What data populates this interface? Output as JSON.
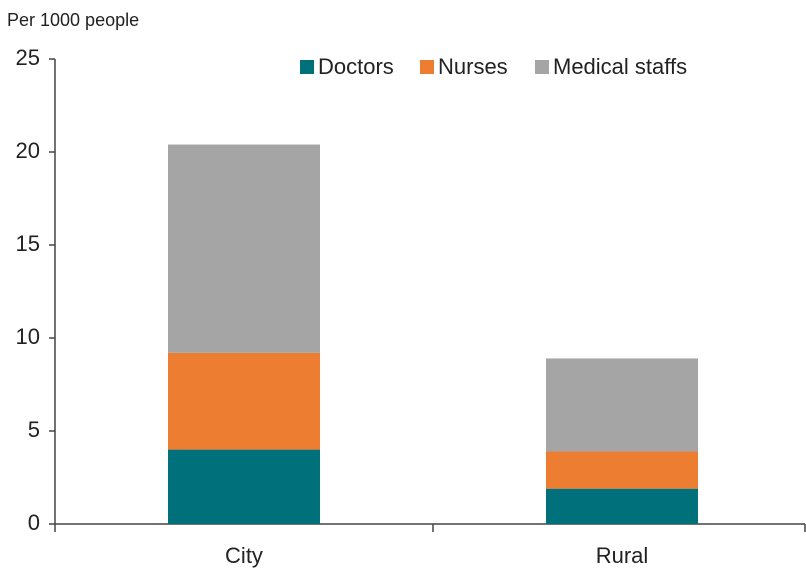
{
  "chart_data": {
    "type": "stacked_bar",
    "y_axis_label": "Per 1000 people",
    "categories": [
      "City",
      "Rural"
    ],
    "series": [
      {
        "name": "Doctors",
        "color": "#00707a",
        "values": [
          4.0,
          1.9
        ]
      },
      {
        "name": "Nurses",
        "color": "#ed7d31",
        "values": [
          5.2,
          2.0
        ]
      },
      {
        "name": "Medical staffs",
        "color": "#a5a5a5",
        "values": [
          11.2,
          5.0
        ]
      }
    ],
    "ylim": [
      0,
      25
    ],
    "yticks": [
      0,
      5,
      10,
      15,
      20,
      25
    ],
    "grid": false,
    "legend": "top"
  }
}
